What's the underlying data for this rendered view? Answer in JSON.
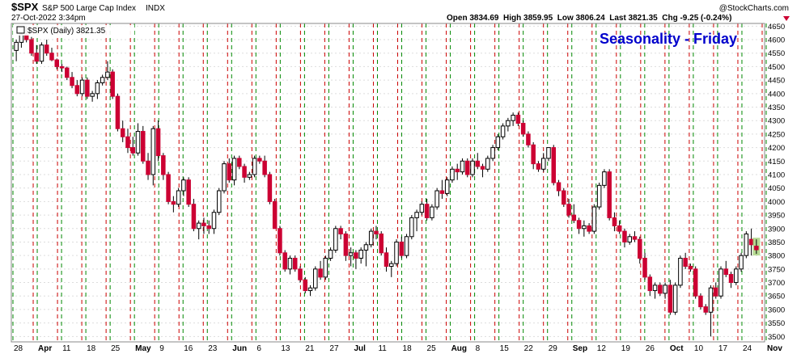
{
  "header": {
    "symbol": "$SPX",
    "name": "S&P 500 Large Cap Index",
    "exchange": "INDX",
    "datetime": "27-Oct-2022 3:34pm",
    "watermark": "@StockCharts.com",
    "ohlc_line": "Open 3834.69  High 3859.95  Low 3806.24  Last 3821.35  Chg -9.25 (-0.24%)",
    "legend": "$SPX (Daily) 3821.35",
    "seasonality_title": "Seasonality - Friday"
  },
  "colors": {
    "up_candle_fill": "#ffffff",
    "down_candle_fill": "#cc0033",
    "candle_outline": "#000000",
    "green_gridline": "#008800",
    "red_gridline": "#cc0000",
    "title_blue": "#0000cc",
    "last_candle_highlight": "#99cc66"
  },
  "chart_data": {
    "type": "candlestick",
    "title": "Seasonality - Friday",
    "ylim": [
      3480,
      4660
    ],
    "y_ticks": [
      3500,
      3550,
      3600,
      3650,
      3700,
      3750,
      3800,
      3850,
      3900,
      3950,
      4000,
      4050,
      4100,
      4150,
      4200,
      4250,
      4300,
      4350,
      4400,
      4450,
      4500,
      4550,
      4600,
      4650
    ],
    "x_tick_labels": [
      {
        "label": "28",
        "bold": false
      },
      {
        "label": "Apr",
        "bold": true
      },
      {
        "label": "11",
        "bold": false
      },
      {
        "label": "18",
        "bold": false
      },
      {
        "label": "25",
        "bold": false
      },
      {
        "label": "May",
        "bold": true
      },
      {
        "label": "9",
        "bold": false
      },
      {
        "label": "16",
        "bold": false
      },
      {
        "label": "23",
        "bold": false
      },
      {
        "label": "Jun",
        "bold": true
      },
      {
        "label": "6",
        "bold": false
      },
      {
        "label": "13",
        "bold": false
      },
      {
        "label": "21",
        "bold": false
      },
      {
        "label": "27",
        "bold": false
      },
      {
        "label": "Jul",
        "bold": true
      },
      {
        "label": "11",
        "bold": false
      },
      {
        "label": "18",
        "bold": false
      },
      {
        "label": "25",
        "bold": false
      },
      {
        "label": "Aug",
        "bold": true
      },
      {
        "label": "8",
        "bold": false
      },
      {
        "label": "15",
        "bold": false
      },
      {
        "label": "22",
        "bold": false
      },
      {
        "label": "29",
        "bold": false
      },
      {
        "label": "Sep",
        "bold": true
      },
      {
        "label": "12",
        "bold": false
      },
      {
        "label": "19",
        "bold": false
      },
      {
        "label": "26",
        "bold": false
      },
      {
        "label": "Oct",
        "bold": true
      },
      {
        "label": "10",
        "bold": false
      },
      {
        "label": "17",
        "bold": false
      },
      {
        "label": "24",
        "bold": false
      },
      {
        "label": "Nov",
        "bold": true
      }
    ],
    "week_count": 31,
    "candles": [
      [
        4560,
        4600,
        4520,
        4590
      ],
      [
        4590,
        4640,
        4570,
        4620
      ],
      [
        4620,
        4650,
        4590,
        4600
      ],
      [
        4600,
        4610,
        4540,
        4550
      ],
      [
        4550,
        4580,
        4510,
        4520
      ],
      [
        4520,
        4590,
        4510,
        4580
      ],
      [
        4580,
        4600,
        4540,
        4550
      ],
      [
        4550,
        4570,
        4520,
        4525
      ],
      [
        4525,
        4530,
        4490,
        4500
      ],
      [
        4500,
        4510,
        4480,
        4495
      ],
      [
        4495,
        4500,
        4450,
        4460
      ],
      [
        4460,
        4480,
        4420,
        4430
      ],
      [
        4430,
        4450,
        4390,
        4400
      ],
      [
        4400,
        4460,
        4390,
        4450
      ],
      [
        4450,
        4460,
        4380,
        4390
      ],
      [
        4390,
        4410,
        4370,
        4400
      ],
      [
        4400,
        4450,
        4380,
        4440
      ],
      [
        4440,
        4470,
        4430,
        4460
      ],
      [
        4460,
        4520,
        4450,
        4480
      ],
      [
        4480,
        4490,
        4380,
        4390
      ],
      [
        4390,
        4400,
        4260,
        4270
      ],
      [
        4270,
        4300,
        4220,
        4240
      ],
      [
        4240,
        4270,
        4180,
        4200
      ],
      [
        4200,
        4240,
        4170,
        4180
      ],
      [
        4180,
        4290,
        4170,
        4260
      ],
      [
        4260,
        4280,
        4140,
        4150
      ],
      [
        4150,
        4180,
        4080,
        4100
      ],
      [
        4100,
        4280,
        4060,
        4270
      ],
      [
        4270,
        4300,
        4150,
        4170
      ],
      [
        4170,
        4180,
        4080,
        4100
      ],
      [
        4100,
        4110,
        3990,
        4000
      ],
      [
        4000,
        4020,
        3960,
        3990
      ],
      [
        3990,
        4050,
        3980,
        4040
      ],
      [
        4040,
        4090,
        4020,
        4080
      ],
      [
        4080,
        4090,
        3980,
        3990
      ],
      [
        3990,
        4010,
        3890,
        3900
      ],
      [
        3900,
        3930,
        3860,
        3920
      ],
      [
        3920,
        3940,
        3880,
        3910
      ],
      [
        3910,
        3930,
        3880,
        3900
      ],
      [
        3900,
        3970,
        3880,
        3960
      ],
      [
        3960,
        4050,
        3950,
        4040
      ],
      [
        4040,
        4150,
        4030,
        4140
      ],
      [
        4140,
        4160,
        4070,
        4080
      ],
      [
        4080,
        4170,
        4060,
        4160
      ],
      [
        4160,
        4170,
        4120,
        4130
      ],
      [
        4130,
        4140,
        4070,
        4090
      ],
      [
        4090,
        4110,
        4080,
        4100
      ],
      [
        4100,
        4170,
        4090,
        4160
      ],
      [
        4160,
        4170,
        4140,
        4150
      ],
      [
        4150,
        4170,
        4090,
        4100
      ],
      [
        4100,
        4110,
        3990,
        4000
      ],
      [
        4000,
        4010,
        3900,
        3900
      ],
      [
        3900,
        3910,
        3800,
        3810
      ],
      [
        3810,
        3820,
        3740,
        3750
      ],
      [
        3750,
        3800,
        3730,
        3790
      ],
      [
        3790,
        3800,
        3740,
        3750
      ],
      [
        3750,
        3760,
        3700,
        3710
      ],
      [
        3710,
        3720,
        3660,
        3670
      ],
      [
        3670,
        3690,
        3650,
        3680
      ],
      [
        3680,
        3760,
        3670,
        3750
      ],
      [
        3750,
        3780,
        3710,
        3720
      ],
      [
        3720,
        3800,
        3710,
        3790
      ],
      [
        3790,
        3830,
        3780,
        3820
      ],
      [
        3820,
        3910,
        3810,
        3900
      ],
      [
        3900,
        3910,
        3860,
        3880
      ],
      [
        3880,
        3890,
        3780,
        3800
      ],
      [
        3800,
        3830,
        3760,
        3810
      ],
      [
        3810,
        3820,
        3750,
        3790
      ],
      [
        3790,
        3830,
        3770,
        3820
      ],
      [
        3820,
        3850,
        3760,
        3840
      ],
      [
        3840,
        3900,
        3830,
        3890
      ],
      [
        3890,
        3910,
        3860,
        3880
      ],
      [
        3880,
        3890,
        3800,
        3810
      ],
      [
        3810,
        3830,
        3740,
        3760
      ],
      [
        3760,
        3780,
        3720,
        3770
      ],
      [
        3770,
        3860,
        3760,
        3850
      ],
      [
        3850,
        3870,
        3790,
        3800
      ],
      [
        3800,
        3880,
        3790,
        3870
      ],
      [
        3870,
        3950,
        3860,
        3940
      ],
      [
        3940,
        3970,
        3890,
        3960
      ],
      [
        3960,
        4000,
        3950,
        3990
      ],
      [
        3990,
        4010,
        3930,
        3940
      ],
      [
        3940,
        3990,
        3930,
        3980
      ],
      [
        3980,
        4050,
        3970,
        4040
      ],
      [
        4040,
        4080,
        4010,
        4030
      ],
      [
        4030,
        4090,
        4020,
        4080
      ],
      [
        4080,
        4130,
        4070,
        4120
      ],
      [
        4120,
        4140,
        4080,
        4110
      ],
      [
        4110,
        4160,
        4100,
        4150
      ],
      [
        4150,
        4160,
        4090,
        4100
      ],
      [
        4100,
        4160,
        4090,
        4150
      ],
      [
        4150,
        4180,
        4120,
        4130
      ],
      [
        4130,
        4140,
        4090,
        4120
      ],
      [
        4120,
        4170,
        4110,
        4160
      ],
      [
        4160,
        4210,
        4150,
        4200
      ],
      [
        4200,
        4250,
        4190,
        4240
      ],
      [
        4240,
        4290,
        4230,
        4280
      ],
      [
        4280,
        4310,
        4260,
        4300
      ],
      [
        4300,
        4330,
        4280,
        4320
      ],
      [
        4320,
        4330,
        4280,
        4290
      ],
      [
        4290,
        4300,
        4240,
        4250
      ],
      [
        4250,
        4260,
        4200,
        4210
      ],
      [
        4210,
        4220,
        4120,
        4140
      ],
      [
        4140,
        4150,
        4110,
        4120
      ],
      [
        4120,
        4180,
        4110,
        4160
      ],
      [
        4160,
        4200,
        4150,
        4200
      ],
      [
        4200,
        4210,
        4060,
        4070
      ],
      [
        4070,
        4080,
        4020,
        4040
      ],
      [
        4040,
        4050,
        3980,
        3990
      ],
      [
        3990,
        4010,
        3940,
        3950
      ],
      [
        3950,
        3990,
        3920,
        3930
      ],
      [
        3930,
        3940,
        3880,
        3900
      ],
      [
        3900,
        3930,
        3870,
        3910
      ],
      [
        3910,
        3920,
        3880,
        3890
      ],
      [
        3890,
        3990,
        3880,
        3980
      ],
      [
        3980,
        4070,
        3970,
        4060
      ],
      [
        4060,
        4120,
        4050,
        4110
      ],
      [
        4110,
        4120,
        3930,
        3940
      ],
      [
        3940,
        3960,
        3890,
        3910
      ],
      [
        3910,
        3930,
        3880,
        3890
      ],
      [
        3890,
        3900,
        3830,
        3850
      ],
      [
        3850,
        3880,
        3840,
        3870
      ],
      [
        3870,
        3890,
        3850,
        3860
      ],
      [
        3860,
        3870,
        3770,
        3790
      ],
      [
        3790,
        3810,
        3710,
        3720
      ],
      [
        3720,
        3730,
        3650,
        3670
      ],
      [
        3670,
        3700,
        3640,
        3690
      ],
      [
        3690,
        3700,
        3650,
        3660
      ],
      [
        3660,
        3700,
        3640,
        3690
      ],
      [
        3690,
        3710,
        3580,
        3590
      ],
      [
        3590,
        3700,
        3580,
        3690
      ],
      [
        3690,
        3800,
        3680,
        3790
      ],
      [
        3790,
        3810,
        3750,
        3760
      ],
      [
        3760,
        3770,
        3740,
        3750
      ],
      [
        3750,
        3760,
        3640,
        3650
      ],
      [
        3650,
        3660,
        3600,
        3610
      ],
      [
        3610,
        3620,
        3580,
        3590
      ],
      [
        3590,
        3690,
        3500,
        3680
      ],
      [
        3680,
        3700,
        3640,
        3650
      ],
      [
        3650,
        3760,
        3640,
        3750
      ],
      [
        3750,
        3780,
        3720,
        3730
      ],
      [
        3730,
        3740,
        3680,
        3700
      ],
      [
        3700,
        3760,
        3690,
        3750
      ],
      [
        3750,
        3810,
        3740,
        3800
      ],
      [
        3800,
        3890,
        3790,
        3880
      ],
      [
        3860,
        3900,
        3800,
        3840
      ],
      [
        3834.69,
        3859.95,
        3806.24,
        3821.35
      ]
    ]
  }
}
